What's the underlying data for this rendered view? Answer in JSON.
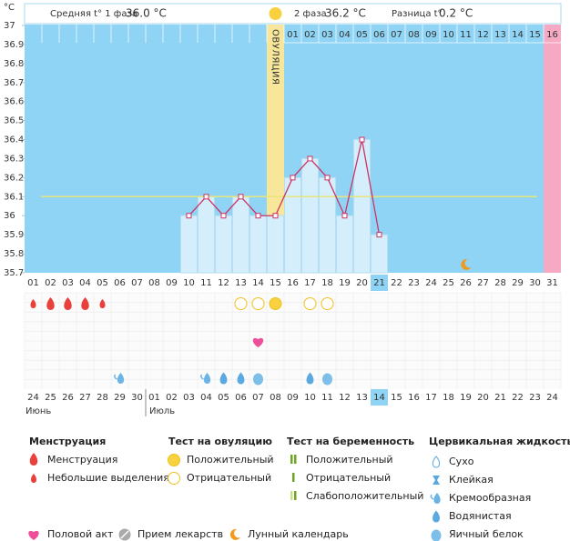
{
  "chart_data": {
    "type": "line",
    "y_unit": "°C",
    "summary": {
      "phase1_label": "Средняя t° 1 фаза",
      "phase1_value": "36.0 °C",
      "phase2_label": "2 фаза",
      "phase2_value": "36.2 °C",
      "diff_label": "Разница t°",
      "diff_value": "0.2 °C"
    },
    "ovulation_label": "ОВУЛЯЦИЯ",
    "ovulation_day": "15",
    "expected_period_day": "31",
    "today": "21",
    "categories": [
      "01",
      "02",
      "03",
      "04",
      "05",
      "06",
      "07",
      "08",
      "09",
      "10",
      "11",
      "12",
      "13",
      "14",
      "15",
      "16",
      "17",
      "18",
      "19",
      "20",
      "21",
      "22",
      "23",
      "24",
      "25",
      "26",
      "27",
      "28",
      "29",
      "30",
      "31"
    ],
    "values": [
      null,
      null,
      null,
      null,
      null,
      null,
      null,
      null,
      null,
      36.0,
      36.1,
      36.0,
      36.1,
      36.0,
      36.0,
      36.2,
      36.3,
      36.2,
      36.0,
      36.4,
      35.9,
      null,
      null,
      null,
      null,
      null,
      null,
      null,
      null,
      null,
      null
    ],
    "color": "#cc3366",
    "bar_color": "#d4eefb",
    "background_color": "#8fd4f4",
    "coverline": 36.1,
    "coverline_color": "#e6e67a",
    "ylim": [
      35.7,
      37
    ],
    "yticks": [
      35.7,
      35.8,
      35.9,
      36,
      36.1,
      36.2,
      36.3,
      36.4,
      36.5,
      36.6,
      36.7,
      36.8,
      36.9,
      37
    ],
    "phase2_days": [
      "01",
      "02",
      "03",
      "04",
      "05",
      "06",
      "07",
      "08",
      "09",
      "10",
      "11",
      "12",
      "13",
      "14",
      "15",
      "16"
    ],
    "calendar": [
      "24",
      "25",
      "26",
      "27",
      "28",
      "29",
      "30",
      "01",
      "02",
      "03",
      "04",
      "05",
      "06",
      "07",
      "08",
      "09",
      "10",
      "11",
      "12",
      "13",
      "14",
      "15",
      "16",
      "17",
      "18",
      "19",
      "20",
      "21",
      "22",
      "23",
      "24"
    ],
    "calendar_red": [
      true,
      true,
      false,
      false,
      false,
      false,
      false,
      true,
      true,
      false,
      false,
      false,
      false,
      false,
      true,
      true,
      false,
      false,
      false,
      false,
      false,
      true,
      true,
      false,
      false,
      false,
      false,
      false,
      true,
      true,
      false
    ],
    "months": [
      "Июнь",
      "Июль"
    ],
    "moon_day": "26",
    "menstruation": {
      "01": "small",
      "02": "heavy",
      "03": "heavy",
      "04": "heavy",
      "05": "small"
    },
    "ovulation_tests": {
      "13": "negative",
      "14": "negative",
      "15": "positive",
      "17": "negative",
      "18": "negative"
    },
    "intercourse": [
      "14"
    ],
    "cervical": {
      "06": "creamy",
      "11": "creamy",
      "12": "watery",
      "13": "watery",
      "14": "egg",
      "17": "watery",
      "18": "egg"
    }
  },
  "legend": {
    "menstruation": {
      "title": "Менструация",
      "items": [
        "Менструация",
        "Небольшие выделения"
      ]
    },
    "ovulation_test": {
      "title": "Тест на овуляцию",
      "items": [
        "Положительный",
        "Отрицательный"
      ]
    },
    "pregnancy_test": {
      "title": "Тест на беременность",
      "items": [
        "Положительный",
        "Отрицательный",
        "Слабоположительный"
      ]
    },
    "cervical": {
      "title": "Цервикальная жидкость",
      "items": [
        "Сухо",
        "Клейкая",
        "Кремообразная",
        "Водянистая",
        "Яичный белок"
      ]
    },
    "other": [
      "Половой акт",
      "Прием лекарств",
      "Лунный календарь"
    ]
  }
}
